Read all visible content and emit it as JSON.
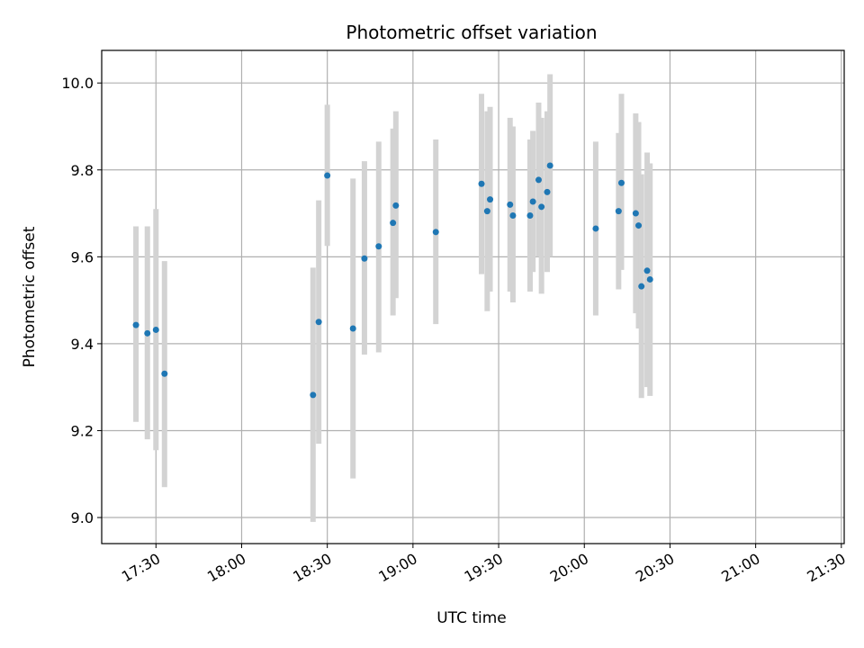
{
  "chart_data": {
    "type": "scatter",
    "title": "Photometric offset variation",
    "xlabel": "UTC time",
    "ylabel": "Photometric offset",
    "xlim": [
      "17:11",
      "21:31"
    ],
    "ylim": [
      8.94,
      10.075
    ],
    "x_ticks": [
      "17:30",
      "18:00",
      "18:30",
      "19:00",
      "19:30",
      "20:00",
      "20:30",
      "21:00",
      "21:30"
    ],
    "y_ticks": [
      "9.0",
      "9.2",
      "9.4",
      "9.6",
      "9.8",
      "10.0"
    ],
    "grid": true,
    "errorbar_color": "#d3d3d3",
    "marker_color": "#1f77b4",
    "points": [
      {
        "x": "17:23",
        "y": 9.443,
        "err_low": 9.22,
        "err_high": 9.67
      },
      {
        "x": "17:27",
        "y": 9.424,
        "err_low": 9.18,
        "err_high": 9.67
      },
      {
        "x": "17:30",
        "y": 9.432,
        "err_low": 9.155,
        "err_high": 9.71
      },
      {
        "x": "17:33",
        "y": 9.331,
        "err_low": 9.07,
        "err_high": 9.59
      },
      {
        "x": "18:25",
        "y": 9.282,
        "err_low": 8.99,
        "err_high": 9.575
      },
      {
        "x": "18:27",
        "y": 9.45,
        "err_low": 9.17,
        "err_high": 9.73
      },
      {
        "x": "18:30",
        "y": 9.787,
        "err_low": 9.625,
        "err_high": 9.95
      },
      {
        "x": "18:39",
        "y": 9.435,
        "err_low": 9.09,
        "err_high": 9.78
      },
      {
        "x": "18:43",
        "y": 9.596,
        "err_low": 9.375,
        "err_high": 9.82
      },
      {
        "x": "18:48",
        "y": 9.624,
        "err_low": 9.38,
        "err_high": 9.865
      },
      {
        "x": "18:53",
        "y": 9.678,
        "err_low": 9.465,
        "err_high": 9.895
      },
      {
        "x": "18:54",
        "y": 9.718,
        "err_low": 9.505,
        "err_high": 9.935
      },
      {
        "x": "19:08",
        "y": 9.657,
        "err_low": 9.445,
        "err_high": 9.87
      },
      {
        "x": "19:24",
        "y": 9.768,
        "err_low": 9.56,
        "err_high": 9.975
      },
      {
        "x": "19:26",
        "y": 9.705,
        "err_low": 9.475,
        "err_high": 9.935
      },
      {
        "x": "19:27",
        "y": 9.732,
        "err_low": 9.52,
        "err_high": 9.945
      },
      {
        "x": "19:34",
        "y": 9.72,
        "err_low": 9.52,
        "err_high": 9.92
      },
      {
        "x": "19:35",
        "y": 9.695,
        "err_low": 9.495,
        "err_high": 9.9
      },
      {
        "x": "19:41",
        "y": 9.695,
        "err_low": 9.52,
        "err_high": 9.87
      },
      {
        "x": "19:42",
        "y": 9.727,
        "err_low": 9.565,
        "err_high": 9.89
      },
      {
        "x": "19:44",
        "y": 9.777,
        "err_low": 9.6,
        "err_high": 9.955
      },
      {
        "x": "19:45",
        "y": 9.715,
        "err_low": 9.515,
        "err_high": 9.92
      },
      {
        "x": "19:47",
        "y": 9.749,
        "err_low": 9.565,
        "err_high": 9.935
      },
      {
        "x": "19:48",
        "y": 9.81,
        "err_low": 9.6,
        "err_high": 10.02
      },
      {
        "x": "20:04",
        "y": 9.665,
        "err_low": 9.465,
        "err_high": 9.865
      },
      {
        "x": "20:12",
        "y": 9.705,
        "err_low": 9.525,
        "err_high": 9.885
      },
      {
        "x": "20:13",
        "y": 9.77,
        "err_low": 9.57,
        "err_high": 9.975
      },
      {
        "x": "20:18",
        "y": 9.7,
        "err_low": 9.47,
        "err_high": 9.93
      },
      {
        "x": "20:19",
        "y": 9.672,
        "err_low": 9.435,
        "err_high": 9.91
      },
      {
        "x": "20:20",
        "y": 9.532,
        "err_low": 9.275,
        "err_high": 9.79
      },
      {
        "x": "20:22",
        "y": 9.568,
        "err_low": 9.3,
        "err_high": 9.84
      },
      {
        "x": "20:23",
        "y": 9.548,
        "err_low": 9.28,
        "err_high": 9.815
      }
    ]
  }
}
